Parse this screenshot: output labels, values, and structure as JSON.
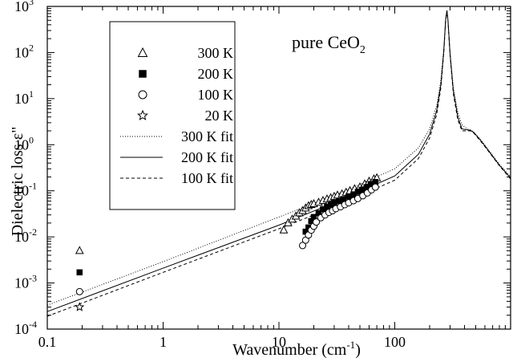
{
  "chart_data": {
    "type": "scatter",
    "annotation": {
      "prefix": "pure CeO",
      "subscript": "2"
    },
    "xlabel": {
      "main": "Wavenumber (cm",
      "sup": "-1",
      "close": ")"
    },
    "ylabel": "Dielectric loss ε\"",
    "x_scale": "log",
    "y_scale": "log",
    "xlim": [
      0.1,
      1000
    ],
    "ylim": [
      0.0001,
      1000
    ],
    "x_ticks": [
      {
        "value": 0.1,
        "label": "0.1"
      },
      {
        "value": 1,
        "label": "1"
      },
      {
        "value": 10,
        "label": "10"
      },
      {
        "value": 100,
        "label": "100"
      }
    ],
    "y_ticks": [
      {
        "value": 0.0001,
        "base": "10",
        "exp": "-4"
      },
      {
        "value": 0.001,
        "base": "10",
        "exp": "-3"
      },
      {
        "value": 0.01,
        "base": "10",
        "exp": "-2"
      },
      {
        "value": 0.1,
        "base": "10",
        "exp": "-1"
      },
      {
        "value": 1,
        "base": "10",
        "exp": "0"
      },
      {
        "value": 10,
        "base": "10",
        "exp": "1"
      },
      {
        "value": 100,
        "base": "10",
        "exp": "2"
      },
      {
        "value": 1000,
        "base": "10",
        "exp": "3"
      }
    ],
    "grid": false,
    "legend_position": "top-left",
    "series": [
      {
        "name": "300 K",
        "kind": "points",
        "marker": "triangle-open",
        "points": [
          [
            0.19,
            0.005
          ],
          [
            11,
            0.014
          ],
          [
            12,
            0.02
          ],
          [
            13,
            0.024
          ],
          [
            14,
            0.028
          ],
          [
            15,
            0.033
          ],
          [
            16,
            0.037
          ],
          [
            17,
            0.042
          ],
          [
            18,
            0.047
          ],
          [
            19,
            0.05
          ],
          [
            20,
            0.052
          ],
          [
            22,
            0.056
          ],
          [
            24,
            0.061
          ],
          [
            26,
            0.066
          ],
          [
            28,
            0.07
          ],
          [
            30,
            0.075
          ],
          [
            32,
            0.08
          ],
          [
            35,
            0.085
          ],
          [
            38,
            0.092
          ],
          [
            41,
            0.1
          ],
          [
            45,
            0.11
          ],
          [
            50,
            0.12
          ],
          [
            55,
            0.14
          ],
          [
            60,
            0.16
          ],
          [
            66,
            0.18
          ],
          [
            70,
            0.19
          ]
        ]
      },
      {
        "name": "200 K",
        "kind": "points",
        "marker": "square-filled",
        "points": [
          [
            0.19,
            0.0017
          ],
          [
            17,
            0.013
          ],
          [
            18,
            0.016
          ],
          [
            19,
            0.022
          ],
          [
            20,
            0.027
          ],
          [
            22,
            0.033
          ],
          [
            24,
            0.04
          ],
          [
            26,
            0.045
          ],
          [
            28,
            0.05
          ],
          [
            30,
            0.055
          ],
          [
            33,
            0.06
          ],
          [
            36,
            0.066
          ],
          [
            40,
            0.075
          ],
          [
            44,
            0.082
          ],
          [
            48,
            0.095
          ],
          [
            52,
            0.105
          ],
          [
            57,
            0.12
          ],
          [
            62,
            0.14
          ],
          [
            68,
            0.155
          ]
        ]
      },
      {
        "name": "100 K",
        "kind": "points",
        "marker": "circle-open",
        "points": [
          [
            0.19,
            0.00065
          ],
          [
            16,
            0.0065
          ],
          [
            17,
            0.0085
          ],
          [
            18,
            0.011
          ],
          [
            19,
            0.014
          ],
          [
            20,
            0.017
          ],
          [
            21,
            0.021
          ],
          [
            23,
            0.026
          ],
          [
            25,
            0.03
          ],
          [
            27,
            0.034
          ],
          [
            29,
            0.037
          ],
          [
            31,
            0.041
          ],
          [
            34,
            0.045
          ],
          [
            37,
            0.05
          ],
          [
            40,
            0.055
          ],
          [
            44,
            0.061
          ],
          [
            48,
            0.068
          ],
          [
            53,
            0.078
          ],
          [
            58,
            0.09
          ],
          [
            63,
            0.105
          ],
          [
            68,
            0.12
          ]
        ]
      },
      {
        "name": "20 K",
        "kind": "points",
        "marker": "star-open",
        "points": [
          [
            0.19,
            0.0003
          ]
        ]
      },
      {
        "name": "300 K fit",
        "kind": "line",
        "dash": "1,2",
        "points": [
          [
            0.1,
            0.00033
          ],
          [
            1,
            0.0029
          ],
          [
            10,
            0.027
          ],
          [
            30,
            0.078
          ],
          [
            100,
            0.3
          ],
          [
            160,
            0.85
          ],
          [
            200,
            2.2
          ],
          [
            230,
            7
          ],
          [
            250,
            25
          ],
          [
            265,
            120
          ],
          [
            275,
            500
          ],
          [
            282,
            750
          ],
          [
            288,
            480
          ],
          [
            300,
            100
          ],
          [
            320,
            18
          ],
          [
            350,
            5
          ],
          [
            380,
            2.7
          ],
          [
            420,
            2.2
          ],
          [
            450,
            2.1
          ],
          [
            480,
            1.9
          ],
          [
            550,
            1.3
          ],
          [
            650,
            0.75
          ],
          [
            800,
            0.38
          ],
          [
            1000,
            0.2
          ]
        ]
      },
      {
        "name": "200 K fit",
        "kind": "line",
        "dash": "",
        "points": [
          [
            0.1,
            0.00024
          ],
          [
            1,
            0.0021
          ],
          [
            10,
            0.018
          ],
          [
            30,
            0.055
          ],
          [
            100,
            0.21
          ],
          [
            160,
            0.62
          ],
          [
            200,
            1.7
          ],
          [
            230,
            5.5
          ],
          [
            250,
            20
          ],
          [
            265,
            110
          ],
          [
            275,
            520
          ],
          [
            282,
            820
          ],
          [
            288,
            500
          ],
          [
            300,
            95
          ],
          [
            320,
            15
          ],
          [
            350,
            4
          ],
          [
            380,
            2.2
          ],
          [
            420,
            2.1
          ],
          [
            450,
            2.05
          ],
          [
            480,
            1.85
          ],
          [
            550,
            1.25
          ],
          [
            650,
            0.72
          ],
          [
            800,
            0.36
          ],
          [
            1000,
            0.19
          ]
        ]
      },
      {
        "name": "100 K fit",
        "kind": "line",
        "dash": "4,3",
        "points": [
          [
            0.1,
            0.00019
          ],
          [
            1,
            0.0017
          ],
          [
            10,
            0.015
          ],
          [
            30,
            0.045
          ],
          [
            100,
            0.17
          ],
          [
            160,
            0.5
          ],
          [
            200,
            1.4
          ],
          [
            230,
            4.5
          ],
          [
            250,
            17
          ],
          [
            265,
            100
          ],
          [
            275,
            500
          ],
          [
            282,
            800
          ],
          [
            288,
            490
          ],
          [
            300,
            90
          ],
          [
            320,
            13
          ],
          [
            350,
            3.5
          ],
          [
            380,
            2
          ],
          [
            420,
            2
          ],
          [
            450,
            2
          ],
          [
            480,
            1.8
          ],
          [
            550,
            1.2
          ],
          [
            650,
            0.7
          ],
          [
            800,
            0.35
          ],
          [
            1000,
            0.18
          ]
        ]
      }
    ]
  }
}
